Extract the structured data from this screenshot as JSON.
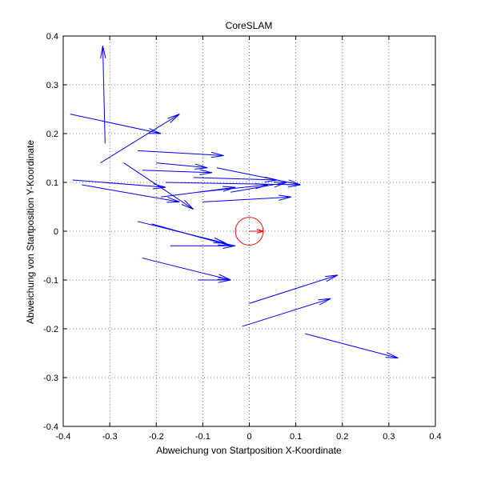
{
  "chart_data": {
    "type": "quiver",
    "title": "CoreSLAM",
    "xlabel": "Abweichung von Startposition X-Koordinate",
    "ylabel": "Abweichung von Startposition Y-Koordinate",
    "xlim": [
      -0.4,
      0.4
    ],
    "ylim": [
      -0.4,
      0.4
    ],
    "xticks": [
      "-0.4",
      "-0.3",
      "-0.2",
      "-0.1",
      "0",
      "0.1",
      "0.2",
      "0.3",
      "0.4"
    ],
    "yticks": [
      "-0.4",
      "-0.3",
      "-0.2",
      "-0.1",
      "0",
      "0.1",
      "0.2",
      "0.3",
      "0.4"
    ],
    "grid": true,
    "colors": {
      "arrows": "#0000ff",
      "reference": "#ff0000",
      "axes": "#000000"
    },
    "arrows": [
      [
        -0.31,
        0.18,
        -0.315,
        0.38
      ],
      [
        -0.385,
        0.24,
        -0.19,
        0.2
      ],
      [
        -0.32,
        0.14,
        -0.15,
        0.24
      ],
      [
        -0.24,
        0.165,
        -0.055,
        0.155
      ],
      [
        -0.23,
        0.125,
        -0.08,
        0.12
      ],
      [
        -0.2,
        0.14,
        -0.09,
        0.13
      ],
      [
        -0.18,
        0.1,
        0.11,
        0.095
      ],
      [
        -0.19,
        0.07,
        -0.03,
        0.09
      ],
      [
        -0.38,
        0.105,
        -0.18,
        0.09
      ],
      [
        -0.36,
        0.095,
        -0.15,
        0.06
      ],
      [
        -0.27,
        0.14,
        -0.12,
        0.045
      ],
      [
        -0.11,
        0.08,
        0.04,
        0.095
      ],
      [
        -0.04,
        0.08,
        0.08,
        0.1
      ],
      [
        -0.1,
        0.06,
        0.09,
        0.07
      ],
      [
        -0.12,
        0.11,
        0.06,
        0.105
      ],
      [
        -0.07,
        0.13,
        0.11,
        0.095
      ],
      [
        -0.24,
        0.02,
        -0.05,
        -0.025
      ],
      [
        -0.21,
        0.015,
        -0.04,
        -0.03
      ],
      [
        -0.17,
        -0.03,
        -0.03,
        -0.03
      ],
      [
        -0.23,
        -0.055,
        -0.04,
        -0.1
      ],
      [
        -0.11,
        -0.1,
        -0.04,
        -0.1
      ],
      [
        0.0,
        -0.148,
        0.19,
        -0.09
      ],
      [
        -0.015,
        -0.195,
        0.175,
        -0.138
      ],
      [
        0.12,
        -0.21,
        0.32,
        -0.26
      ]
    ],
    "reference": {
      "center": [
        0,
        0
      ],
      "radius": 0.03,
      "heading": [
        0.03,
        0
      ]
    }
  }
}
